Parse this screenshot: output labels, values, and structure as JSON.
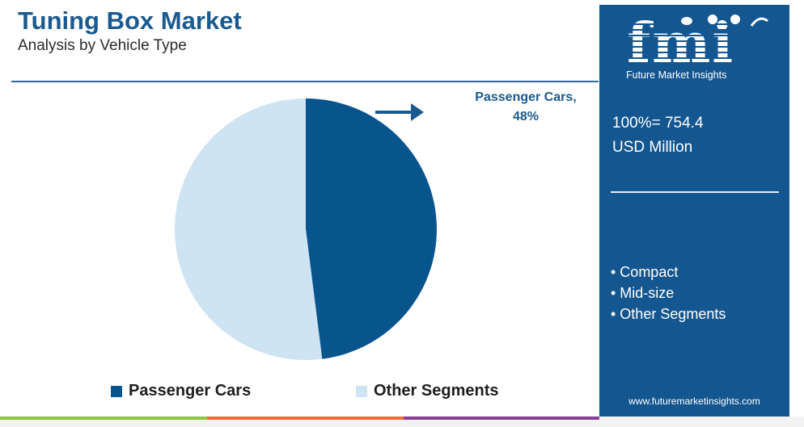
{
  "header": {
    "title": "Tuning Box Market",
    "subtitle": "Analysis by Vehicle Type"
  },
  "callout": {
    "label": "Passenger Cars,",
    "value": "48%"
  },
  "legend": {
    "items": [
      {
        "label": "Passenger Cars",
        "color": "#08548d"
      },
      {
        "label": "Other Segments",
        "color": "#cfe4f3"
      }
    ]
  },
  "panel": {
    "logo": "fmi",
    "logo_subtitle": "Future Market Insights",
    "total_line1": "100%= 754.4",
    "total_line2": "USD Million",
    "segments": [
      "• Compact",
      "• Mid-size",
      "• Other Segments"
    ],
    "url": "www.futuremarketinsights.com"
  },
  "colors": {
    "brand_blue": "#14568f",
    "title_blue": "#1b5a8e",
    "pie_dark": "#08548d",
    "pie_light": "#cfe4f3",
    "bar_green": "#8dc63f",
    "bar_orange": "#f26b3a",
    "bar_purple": "#8a3d96"
  },
  "chart_data": {
    "type": "pie",
    "categories": [
      "Passenger Cars",
      "Other Segments"
    ],
    "values": [
      48,
      52
    ],
    "unit": "%",
    "total": "754.4 USD Million"
  }
}
